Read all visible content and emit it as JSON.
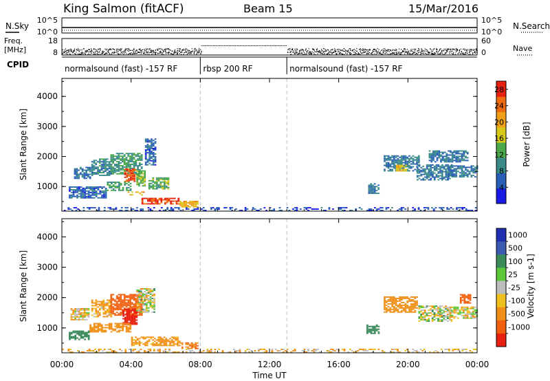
{
  "header": {
    "station": "King Salmon (fitACF)",
    "beam": "Beam 15",
    "date": "15/Mar/2016"
  },
  "top_panels": {
    "nsky_label": "N.Sky",
    "nsky_ticks": [
      "10^5",
      "10^0"
    ],
    "nsearch_label": "N.Search",
    "nsearch_ticks": [
      "10^5",
      "10^0"
    ],
    "freq_label_1": "Freq.",
    "freq_label_2": "[MHz]",
    "freq_ticks": [
      "18",
      "8"
    ],
    "nave_label": "Nave",
    "nave_ticks": [
      "60",
      "0"
    ],
    "cpid_label": "CPID",
    "cpid_segments": [
      {
        "label": "normalsound (fast) -157 RF",
        "start": 0,
        "end": 8
      },
      {
        "label": "rbsp 200 RF",
        "start": 8,
        "end": 13
      },
      {
        "label": "normalsound (fast) -157 RF",
        "start": 13,
        "end": 24
      }
    ]
  },
  "chart_data": [
    {
      "type": "heatmap",
      "name": "power",
      "ylabel": "Slant Range [km]",
      "ylim": [
        180,
        4600
      ],
      "yticks": [
        "1000",
        "2000",
        "3000",
        "4000"
      ],
      "colorbar_label": "Power [dB]",
      "colorbar_ticks": [
        "4",
        "8",
        "12",
        "16",
        "20",
        "24",
        "28"
      ],
      "colorbar_range": [
        0,
        30
      ],
      "colors": [
        "#1a1ae6",
        "#2a5fb8",
        "#3a8a8a",
        "#4aa84a",
        "#d8c81a",
        "#f0a018",
        "#f06a10",
        "#e82010"
      ],
      "regions": [
        {
          "t": [
            0.7,
            1.6
          ],
          "r": [
            1250,
            1650
          ],
          "p": 7
        },
        {
          "t": [
            1.7,
            2.8
          ],
          "r": [
            1350,
            1900
          ],
          "p": 9
        },
        {
          "t": [
            2.8,
            4.6
          ],
          "r": [
            1400,
            2100
          ],
          "p": 11
        },
        {
          "t": [
            3.6,
            4.2
          ],
          "r": [
            1150,
            1600
          ],
          "p": 26
        },
        {
          "t": [
            4.3,
            4.8
          ],
          "r": [
            1000,
            1500
          ],
          "p": 14
        },
        {
          "t": [
            4.8,
            5.4
          ],
          "r": [
            1700,
            2600
          ],
          "p": 6
        },
        {
          "t": [
            0.4,
            2.5
          ],
          "r": [
            600,
            1000
          ],
          "p": 6
        },
        {
          "t": [
            2.6,
            4.0
          ],
          "r": [
            850,
            1150
          ],
          "p": 12
        },
        {
          "t": [
            5.0,
            6.2
          ],
          "r": [
            900,
            1300
          ],
          "p": 13
        },
        {
          "t": [
            3.8,
            4.7
          ],
          "r": [
            700,
            800
          ],
          "p": 20
        },
        {
          "t": [
            4.6,
            6.8
          ],
          "r": [
            400,
            600
          ],
          "p": 27
        },
        {
          "t": [
            6.8,
            7.8
          ],
          "r": [
            300,
            500
          ],
          "p": 20
        },
        {
          "t": [
            0.0,
            24.0
          ],
          "r": [
            180,
            300
          ],
          "p": 5
        },
        {
          "t": [
            17.7,
            18.3
          ],
          "r": [
            750,
            1100
          ],
          "p": 8
        },
        {
          "t": [
            18.6,
            20.6
          ],
          "r": [
            1500,
            2000
          ],
          "p": 8
        },
        {
          "t": [
            19.3,
            19.9
          ],
          "r": [
            1500,
            1700
          ],
          "p": 17
        },
        {
          "t": [
            20.5,
            22.5
          ],
          "r": [
            1200,
            1700
          ],
          "p": 8
        },
        {
          "t": [
            22.3,
            24.0
          ],
          "r": [
            1300,
            1700
          ],
          "p": 8
        },
        {
          "t": [
            21.2,
            23.5
          ],
          "r": [
            1800,
            2200
          ],
          "p": 8
        }
      ]
    },
    {
      "type": "heatmap",
      "name": "velocity",
      "ylabel": "Slant Range [km]",
      "xlabel": "Time UT",
      "ylim": [
        180,
        4600
      ],
      "yticks": [
        "1000",
        "2000",
        "3000",
        "4000"
      ],
      "xticks": [
        "00:00",
        "04:00",
        "08:00",
        "12:00",
        "16:00",
        "20:00",
        "00:00"
      ],
      "xlim": [
        0,
        24
      ],
      "colorbar_label": "Velocity [m s-1]",
      "colorbar_ticks": [
        "1000",
        "500",
        "100",
        "25",
        "-25",
        "-100",
        "-500",
        "-1000"
      ],
      "colors": [
        "#2030b0",
        "#3a5ab0",
        "#3a8a5a",
        "#5ac83a",
        "#bdbdbd",
        "#f0c020",
        "#f09018",
        "#f06010",
        "#e82010"
      ],
      "regions": [
        {
          "t": [
            0.5,
            1.6
          ],
          "r": [
            1250,
            1650
          ],
          "v": -40
        },
        {
          "t": [
            1.7,
            2.8
          ],
          "r": [
            1350,
            1900
          ],
          "v": -80
        },
        {
          "t": [
            2.8,
            4.6
          ],
          "r": [
            1400,
            2100
          ],
          "v": -400
        },
        {
          "t": [
            3.5,
            4.3
          ],
          "r": [
            1100,
            1600
          ],
          "v": -800
        },
        {
          "t": [
            4.3,
            5.4
          ],
          "r": [
            1500,
            2300
          ],
          "v": 0
        },
        {
          "t": [
            0.4,
            1.6
          ],
          "r": [
            600,
            900
          ],
          "v": 150
        },
        {
          "t": [
            1.6,
            4.0
          ],
          "r": [
            850,
            1150
          ],
          "v": -150
        },
        {
          "t": [
            4.0,
            6.8
          ],
          "r": [
            400,
            700
          ],
          "v": -120
        },
        {
          "t": [
            6.8,
            7.9
          ],
          "r": [
            300,
            500
          ],
          "v": -300
        },
        {
          "t": [
            0.0,
            24.0
          ],
          "r": [
            180,
            300
          ],
          "v": -60
        },
        {
          "t": [
            17.6,
            18.3
          ],
          "r": [
            800,
            1100
          ],
          "v": 200
        },
        {
          "t": [
            18.6,
            20.5
          ],
          "r": [
            1500,
            2000
          ],
          "v": -200
        },
        {
          "t": [
            20.6,
            22.5
          ],
          "r": [
            1200,
            1700
          ],
          "v": 0
        },
        {
          "t": [
            22.4,
            24.0
          ],
          "r": [
            1300,
            1700
          ],
          "v": -20
        },
        {
          "t": [
            23.0,
            23.6
          ],
          "r": [
            1800,
            2100
          ],
          "v": -500
        }
      ]
    }
  ]
}
